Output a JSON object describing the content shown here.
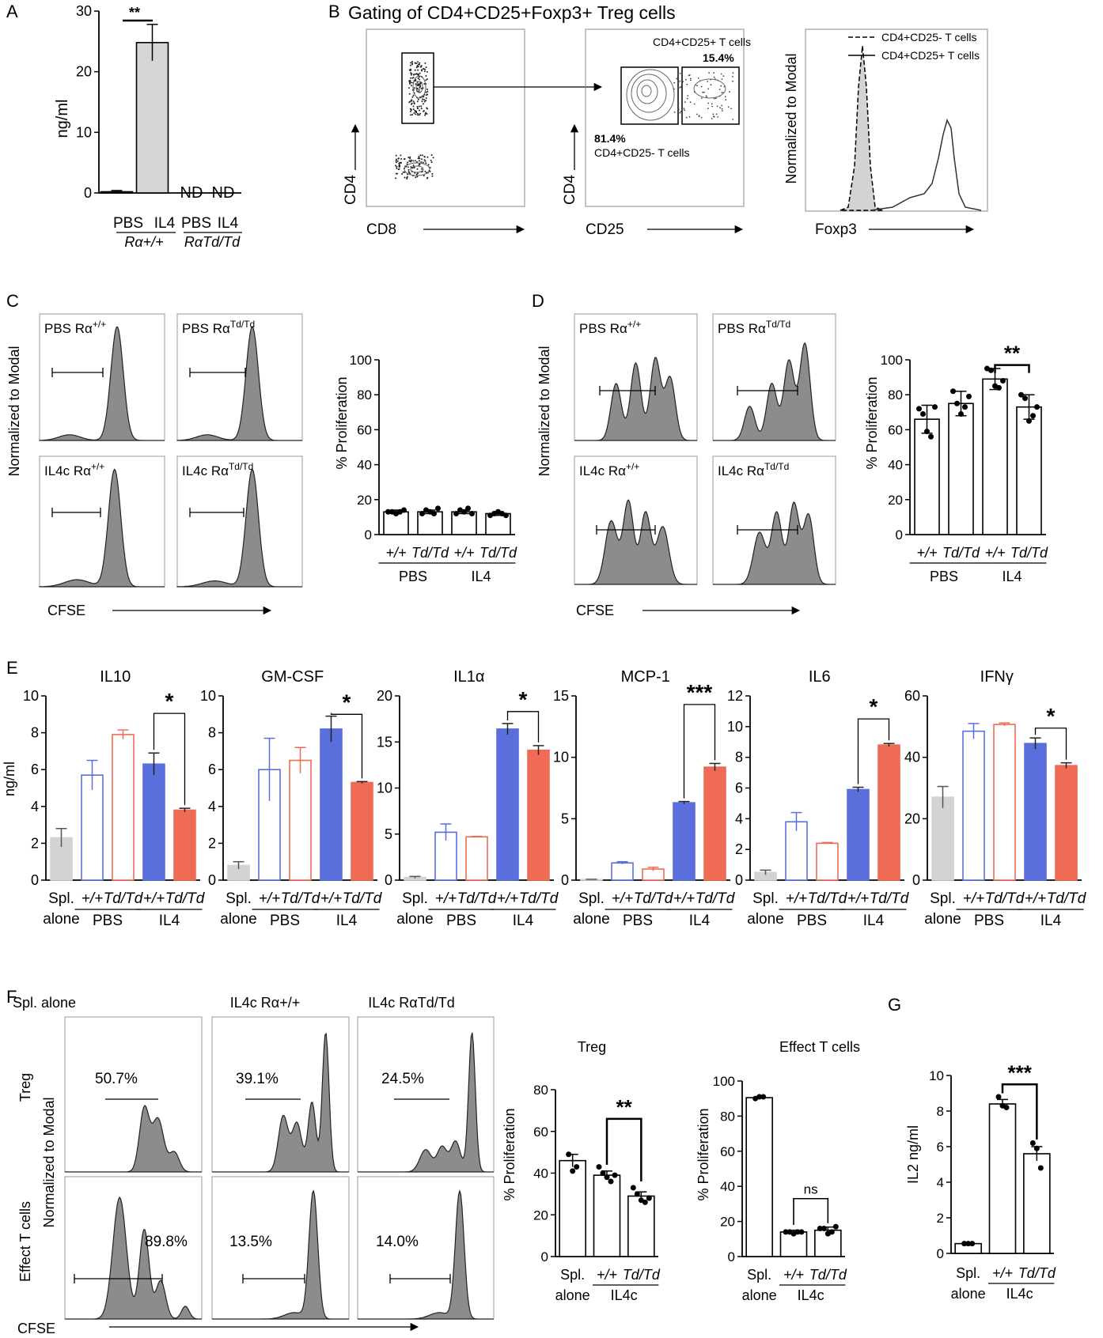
{
  "panels": {
    "A": "A",
    "B": "B",
    "C": "C",
    "D": "D",
    "E": "E",
    "F": "F",
    "G": "G"
  },
  "colors": {
    "blue": "#5b6fdc",
    "red": "#ef6b55",
    "grey": "#d3d3d3",
    "hist": "#8c8c8c",
    "black": "#000000"
  },
  "panel_a": {
    "ylabel": "ng/ml",
    "sig": "**",
    "nd_1": "ND",
    "nd_2": "ND",
    "xlabels": [
      "PBS",
      "IL4",
      "PBS",
      "IL4"
    ],
    "group_1": "Rα+/+",
    "group_2": "RαTd/Td"
  },
  "panel_b": {
    "title": "Gating of CD4+CD25+Foxp3+ Treg cells",
    "p1_x": "CD8",
    "p1_y": "CD4",
    "p2_x": "CD25",
    "p2_y": "CD4",
    "gate_pos_label": "CD4+CD25+ T cells",
    "gate_pos_pct": "15.4%",
    "gate_neg_pct": "81.4%",
    "gate_neg_label": "CD4+CD25- T cells",
    "hist_ylabel": "Normalized to Modal",
    "hist_x": "Foxp3",
    "legend_dashed": "CD4+CD25- T cells",
    "legend_solid": "CD4+CD25+ T cells"
  },
  "panel_c": {
    "labels": [
      "PBS Rα+/+",
      "PBS RαTd/Td",
      "IL4c Rα+/+",
      "IL4c RαTd/Td"
    ],
    "ylabel": "Normalized to Modal",
    "xlabel": "CFSE",
    "bar_ylabel": "% Proliferation",
    "ticks_x": [
      "+/+",
      "Td/Td",
      "+/+",
      "Td/Td"
    ],
    "groups": [
      "PBS",
      "IL4"
    ]
  },
  "panel_d": {
    "labels": [
      "PBS Rα+/+",
      "PBS RαTd/Td",
      "IL4c Rα+/+",
      "IL4c RαTd/Td"
    ],
    "ylabel": "Normalized to Modal",
    "xlabel": "CFSE",
    "bar_ylabel": "% Proliferation",
    "sig": "**",
    "ticks_x": [
      "+/+",
      "Td/Td",
      "+/+",
      "Td/Td"
    ],
    "groups": [
      "PBS",
      "IL4"
    ]
  },
  "panel_e": {
    "ylabel": "ng/ml",
    "cat_0": "Spl.",
    "cat_0b": "alone",
    "ticks_x": [
      "+/+",
      "Td/Td",
      "+/+",
      "Td/Td"
    ],
    "groups": [
      "PBS",
      "IL4"
    ]
  },
  "panel_f": {
    "col_titles": [
      "Spl. alone",
      "IL4c Rα+/+",
      "IL4c RαTd/Td"
    ],
    "row_treg": "Treg",
    "row_eff": "Effect T cells",
    "ylabel": "Normalized to Modal",
    "xlabel": "CFSE",
    "pct_treg": [
      "50.7%",
      "39.1%",
      "24.5%"
    ],
    "pct_eff": [
      "89.8%",
      "13.5%",
      "14.0%"
    ],
    "treg_title": "Treg",
    "eff_title": "Effect T cells",
    "bar_ylabel": "% Proliferation",
    "sig_treg": "**",
    "sig_eff": "ns",
    "cat_0": "Spl.",
    "cat_0b": "alone",
    "ticks_x": [
      "+/+",
      "Td/Td"
    ],
    "group": "IL4c"
  },
  "panel_g": {
    "ylabel": "IL2 ng/ml",
    "sig": "***",
    "cat_0": "Spl.",
    "cat_0b": "alone",
    "ticks_x": [
      "+/+",
      "Td/Td"
    ],
    "group": "IL4c"
  },
  "chart_data": [
    {
      "id": "A",
      "type": "bar",
      "categories": [
        "PBS Rα+/+",
        "IL4 Rα+/+",
        "PBS RαTd/Td",
        "IL4 RαTd/Td"
      ],
      "values": [
        0.2,
        24.8,
        null,
        null
      ],
      "errors": [
        0.2,
        3.0,
        null,
        null
      ],
      "ylim": [
        0,
        30
      ],
      "yticks": [
        0,
        10,
        20,
        30
      ],
      "ylabel": "ng/ml"
    },
    {
      "id": "C",
      "type": "bar",
      "categories": [
        "PBS +/+",
        "PBS Td/Td",
        "IL4 +/+",
        "IL4 Td/Td"
      ],
      "values": [
        13,
        13,
        13,
        12
      ],
      "errors": [
        1,
        1,
        1,
        1
      ],
      "ylim": [
        0,
        100
      ],
      "yticks": [
        0,
        20,
        40,
        60,
        80,
        100
      ],
      "ylabel": "% Proliferation"
    },
    {
      "id": "D",
      "type": "bar",
      "categories": [
        "PBS +/+",
        "PBS Td/Td",
        "IL4 +/+",
        "IL4 Td/Td"
      ],
      "values": [
        66,
        75,
        89,
        73
      ],
      "errors": [
        8,
        7,
        6,
        7
      ],
      "ylim": [
        0,
        100
      ],
      "yticks": [
        0,
        20,
        40,
        60,
        80,
        100
      ],
      "ylabel": "% Proliferation"
    },
    {
      "id": "E",
      "type": "bar",
      "ylabel": "ng/ml",
      "categories": [
        "Spl. alone",
        "PBS +/+",
        "PBS Td/Td",
        "IL4 +/+",
        "IL4 Td/Td"
      ],
      "series": [
        {
          "name": "IL10",
          "values": [
            2.3,
            5.7,
            7.9,
            6.3,
            3.8
          ],
          "errors": [
            0.5,
            0.8,
            0.25,
            0.6,
            0.1
          ],
          "ylim": [
            0,
            10
          ],
          "yticks": [
            0,
            2,
            4,
            6,
            8,
            10
          ],
          "sig": "*"
        },
        {
          "name": "GM-CSF",
          "values": [
            0.8,
            6.0,
            6.5,
            8.2,
            5.3
          ],
          "errors": [
            0.2,
            1.7,
            0.7,
            0.7,
            0.05
          ],
          "ylim": [
            0,
            10
          ],
          "yticks": [
            0,
            2,
            4,
            6,
            8,
            10
          ],
          "sig": "*"
        },
        {
          "name": "IL1α",
          "values": [
            0.3,
            5.2,
            4.7,
            16.4,
            14.1
          ],
          "errors": [
            0.1,
            0.9,
            0.05,
            0.6,
            0.5
          ],
          "ylim": [
            0,
            20
          ],
          "yticks": [
            0,
            5,
            10,
            15,
            20
          ],
          "sig": "*"
        },
        {
          "name": "MCP-1",
          "values": [
            0.05,
            1.4,
            0.9,
            6.3,
            9.2
          ],
          "errors": [
            0.02,
            0.1,
            0.15,
            0.1,
            0.3
          ],
          "ylim": [
            0,
            15
          ],
          "yticks": [
            0,
            5,
            10,
            15
          ],
          "sig": "***"
        },
        {
          "name": "IL6",
          "values": [
            0.5,
            3.8,
            2.4,
            5.9,
            8.8
          ],
          "errors": [
            0.15,
            0.6,
            0.05,
            0.15,
            0.1
          ],
          "ylim": [
            0,
            12
          ],
          "yticks": [
            0,
            2,
            4,
            6,
            8,
            10,
            12
          ],
          "sig": "*"
        },
        {
          "name": "IFNγ",
          "values": [
            27,
            48.5,
            50.7,
            44.5,
            37.3
          ],
          "errors": [
            3.5,
            2.5,
            0.5,
            1.8,
            0.9
          ],
          "ylim": [
            0,
            60
          ],
          "yticks": [
            0,
            20,
            40,
            60
          ],
          "sig": "*"
        }
      ]
    },
    {
      "id": "F-Treg",
      "type": "bar",
      "categories": [
        "Spl. alone",
        "IL4c +/+",
        "IL4c Td/Td"
      ],
      "values": [
        46,
        39,
        29
      ],
      "errors": [
        3,
        2,
        2
      ],
      "ylim": [
        0,
        80
      ],
      "yticks": [
        0,
        20,
        40,
        60,
        80
      ],
      "ylabel": "% Proliferation",
      "points": [
        [
          49,
          41,
          43
        ],
        [
          43,
          40,
          38,
          36,
          39
        ],
        [
          33,
          30,
          27,
          26,
          28
        ]
      ]
    },
    {
      "id": "F-Eff",
      "type": "bar",
      "categories": [
        "Spl. alone",
        "IL4c +/+",
        "IL4c Td/Td"
      ],
      "values": [
        90.5,
        14,
        15
      ],
      "errors": [
        0.5,
        1,
        1.8
      ],
      "ylim": [
        0,
        100
      ],
      "yticks": [
        0,
        20,
        40,
        60,
        80,
        100
      ],
      "ylabel": "% Proliferation",
      "points": [
        [
          90,
          91,
          91
        ],
        [
          14,
          14,
          13,
          14,
          14
        ],
        [
          16,
          16,
          13,
          14,
          17
        ]
      ]
    },
    {
      "id": "G",
      "type": "bar",
      "categories": [
        "Spl. alone",
        "IL4c +/+",
        "IL4c Td/Td"
      ],
      "values": [
        0.55,
        8.4,
        5.6
      ],
      "errors": [
        0.03,
        0.25,
        0.4
      ],
      "ylim": [
        0,
        10
      ],
      "yticks": [
        0,
        2,
        4,
        6,
        8,
        10
      ],
      "ylabel": "IL2 ng/ml",
      "points": [
        [
          0.55,
          0.55,
          0.55
        ],
        [
          8.8,
          8.3,
          8.2
        ],
        [
          6.2,
          5.9,
          4.8
        ]
      ]
    }
  ]
}
